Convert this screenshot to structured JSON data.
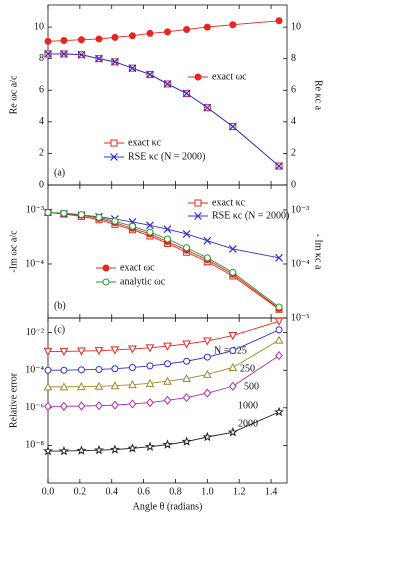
{
  "chart_data": [
    {
      "type": "line",
      "label": "(a)",
      "ylabel": "Re ωc a/c",
      "y2label": "Re κc a",
      "x": [
        0,
        0.1,
        0.21,
        0.32,
        0.42,
        0.53,
        0.64,
        0.75,
        0.87,
        1.0,
        1.16,
        1.45
      ],
      "xlim": [
        0,
        1.5
      ],
      "xticks": [
        {
          "value": 0,
          "label": "0.0"
        },
        {
          "value": 0.2,
          "label": "0.2"
        },
        {
          "value": 0.4,
          "label": "0.4"
        },
        {
          "value": 0.6,
          "label": "0.6"
        },
        {
          "value": 0.8,
          "label": "0.8"
        },
        {
          "value": 1,
          "label": "1.0"
        },
        {
          "value": 1.2,
          "label": "1.2"
        },
        {
          "value": 1.4,
          "label": "1.4"
        }
      ],
      "ylim": [
        0,
        11.4
      ],
      "yticks": [
        0,
        2,
        4,
        6,
        8,
        10
      ],
      "y2lim": [
        0,
        11.4
      ],
      "y2ticks": [
        0,
        2,
        4,
        6,
        8,
        10
      ],
      "series": [
        {
          "name": "exact ωc",
          "color": "#e8251e",
          "marker": "circle-filled",
          "values": [
            9.1,
            9.15,
            9.2,
            9.25,
            9.35,
            9.45,
            9.6,
            9.7,
            9.85,
            10.0,
            10.15,
            10.4
          ]
        },
        {
          "name": "exact κc",
          "color": "#e8251e",
          "marker": "square",
          "axis": "y2",
          "values": [
            8.3,
            8.3,
            8.25,
            8.0,
            7.8,
            7.4,
            7.0,
            6.4,
            5.8,
            4.9,
            3.7,
            1.2
          ]
        },
        {
          "name": "RSE κc (N = 2000)",
          "color": "#3030d8",
          "marker": "cross",
          "axis": "y2",
          "values": [
            8.3,
            8.3,
            8.25,
            8.0,
            7.8,
            7.4,
            7.0,
            6.4,
            5.8,
            4.9,
            3.7,
            1.2
          ]
        }
      ]
    },
    {
      "type": "line",
      "label": "(b)",
      "ylabel": "-Im ωc a/c",
      "y2label": "- Im κc a",
      "log_y": true,
      "x": [
        0,
        0.1,
        0.21,
        0.32,
        0.42,
        0.53,
        0.64,
        0.75,
        0.87,
        1.0,
        1.16,
        1.45
      ],
      "xlim": [
        0,
        1.5
      ],
      "xticks": [
        0,
        0.2,
        0.4,
        0.6,
        0.8,
        1,
        1.2,
        1.4
      ],
      "ylim": [
        1e-05,
        0.0029
      ],
      "yticks": [
        {
          "value": 0.0001,
          "label": "10⁻⁴"
        },
        {
          "value": 0.001,
          "label": "10⁻³"
        }
      ],
      "y2lim": [
        1e-05,
        0.0029
      ],
      "y2ticks": [
        {
          "value": 1e-05,
          "label": "10⁻⁵"
        },
        {
          "value": 0.0001,
          "label": "10⁻⁴"
        },
        {
          "value": 0.001,
          "label": "10⁻³"
        }
      ],
      "series": [
        {
          "name": "exact κc",
          "color": "#e8251e",
          "marker": "square",
          "axis": "y2",
          "values": [
            0.0009,
            0.00084,
            0.00076,
            0.00066,
            0.00054,
            0.00043,
            0.00033,
            0.00024,
            0.000165,
            0.00011,
            6e-05,
            1.45e-05
          ]
        },
        {
          "name": "RSE κc (N = 2000)",
          "color": "#3030d8",
          "marker": "cross",
          "axis": "y2",
          "values": [
            0.0009,
            0.00085,
            0.0008,
            0.00075,
            0.00068,
            0.0006,
            0.00052,
            0.00044,
            0.00036,
            0.00027,
            0.00019,
            0.00013
          ]
        },
        {
          "name": "exact ωc",
          "color": "#e8251e",
          "marker": "circle-filled",
          "values": [
            0.0009,
            0.00086,
            0.0008,
            0.0007,
            0.00058,
            0.00046,
            0.00036,
            0.00026,
            0.00018,
            0.00012,
            6.5e-05,
            1.5e-05
          ]
        },
        {
          "name": "analytic ωc",
          "color": "#2a9a2a",
          "marker": "circle",
          "values": [
            0.0009,
            0.00087,
            0.00082,
            0.00073,
            0.00062,
            0.0005,
            0.00039,
            0.00029,
            0.0002,
            0.00013,
            7e-05,
            1.6e-05
          ]
        }
      ]
    },
    {
      "type": "line",
      "label": "(c)",
      "ylabel": "Relative error",
      "xlabel": "Angle θ (radians)",
      "log_y": true,
      "x": [
        0,
        0.1,
        0.21,
        0.32,
        0.42,
        0.53,
        0.64,
        0.75,
        0.87,
        1.0,
        1.16,
        1.45
      ],
      "xlim": [
        0,
        1.5
      ],
      "xticks": [
        {
          "value": 0,
          "label": "0.0"
        },
        {
          "value": 0.2,
          "label": "0.2"
        },
        {
          "value": 0.4,
          "label": "0.4"
        },
        {
          "value": 0.6,
          "label": "0.6"
        },
        {
          "value": 0.8,
          "label": "0.8"
        },
        {
          "value": 1,
          "label": "1.0"
        },
        {
          "value": 1.2,
          "label": "1.2"
        },
        {
          "value": 1.4,
          "label": "1.4"
        }
      ],
      "ylim": [
        1e-10,
        0.06
      ],
      "yticks": [
        {
          "value": 1e-08,
          "label": "10⁻⁸"
        },
        {
          "value": 1e-06,
          "label": "10⁻⁶"
        },
        {
          "value": 0.0001,
          "label": "10⁻⁴"
        },
        {
          "value": 0.01,
          "label": "10⁻²"
        }
      ],
      "series": [
        {
          "name": "N = 125",
          "color": "#e8251e",
          "marker": "triangle-down",
          "values": [
            0.001,
            0.001,
            0.00105,
            0.0011,
            0.0012,
            0.00135,
            0.00155,
            0.0019,
            0.0025,
            0.0036,
            0.007,
            0.04
          ]
        },
        {
          "name": "250",
          "color": "#3030d8",
          "marker": "circle",
          "values": [
            0.0001,
            0.0001,
            0.000105,
            0.00011,
            0.00012,
            0.00014,
            0.00017,
            0.00022,
            0.0003,
            0.0005,
            0.0011,
            0.014
          ]
        },
        {
          "name": "500",
          "color": "#9c8c28",
          "marker": "triangle-up",
          "values": [
            1.3e-05,
            1.3e-05,
            1.35e-05,
            1.4e-05,
            1.5e-05,
            1.7e-05,
            2e-05,
            2.6e-05,
            3.6e-05,
            6e-05,
            0.00014,
            0.004
          ]
        },
        {
          "name": "1000",
          "color": "#b02cb0",
          "marker": "diamond",
          "values": [
            1.2e-06,
            1.2e-06,
            1.25e-06,
            1.3e-06,
            1.4e-06,
            1.6e-06,
            1.9e-06,
            2.5e-06,
            3.5e-06,
            6e-06,
            1.4e-05,
            0.0006
          ]
        },
        {
          "name": "2000",
          "color": "#222222",
          "marker": "star",
          "values": [
            5e-09,
            5e-09,
            5.3e-09,
            5.6e-09,
            6e-09,
            7e-09,
            8.5e-09,
            1.1e-08,
            1.6e-08,
            2.8e-08,
            5e-08,
            6e-07
          ]
        }
      ]
    }
  ]
}
